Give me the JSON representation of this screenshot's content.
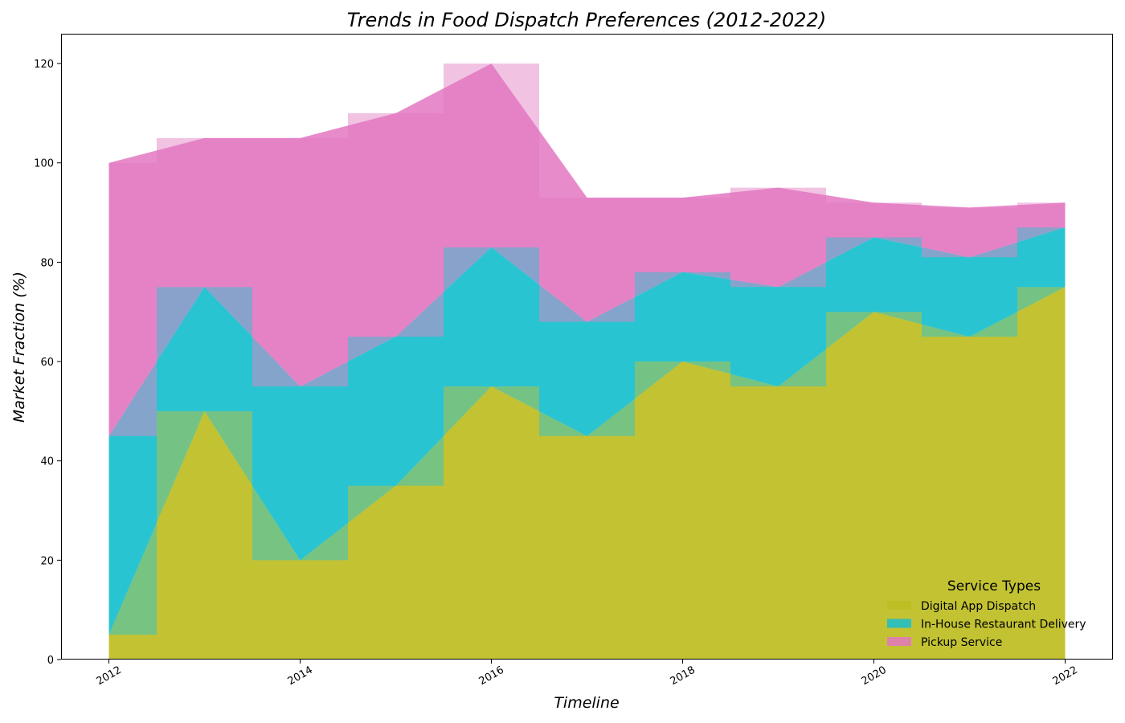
{
  "chart_data": {
    "type": "area",
    "title": "Trends in Food Dispatch Preferences (2012-2022)",
    "xlabel": "Timeline",
    "ylabel": "Market Fraction (%)",
    "x": [
      2012,
      2013,
      2014,
      2015,
      2016,
      2017,
      2018,
      2019,
      2020,
      2021,
      2022
    ],
    "xticks": [
      2012,
      2014,
      2016,
      2018,
      2020,
      2022
    ],
    "yticks": [
      0,
      20,
      40,
      60,
      80,
      100,
      120
    ],
    "xlim": [
      2011.5,
      2022.5
    ],
    "ylim": [
      0,
      126
    ],
    "stacked": true,
    "step_overlay": true,
    "series": [
      {
        "name": "Digital App Dispatch",
        "values": [
          5,
          50,
          20,
          35,
          55,
          45,
          60,
          55,
          70,
          65,
          75
        ],
        "color": "#bcbd22"
      },
      {
        "name": "In-House Restaurant Delivery",
        "values": [
          40,
          25,
          35,
          30,
          28,
          23,
          18,
          20,
          15,
          16,
          12
        ],
        "color": "#17becf"
      },
      {
        "name": "Pickup Service",
        "values": [
          55,
          30,
          50,
          45,
          37,
          25,
          15,
          20,
          7,
          10,
          5
        ],
        "color": "#e377c2"
      }
    ],
    "legend": {
      "title": "Service Types",
      "position": "lower-right",
      "frame": false
    },
    "grid": false
  }
}
